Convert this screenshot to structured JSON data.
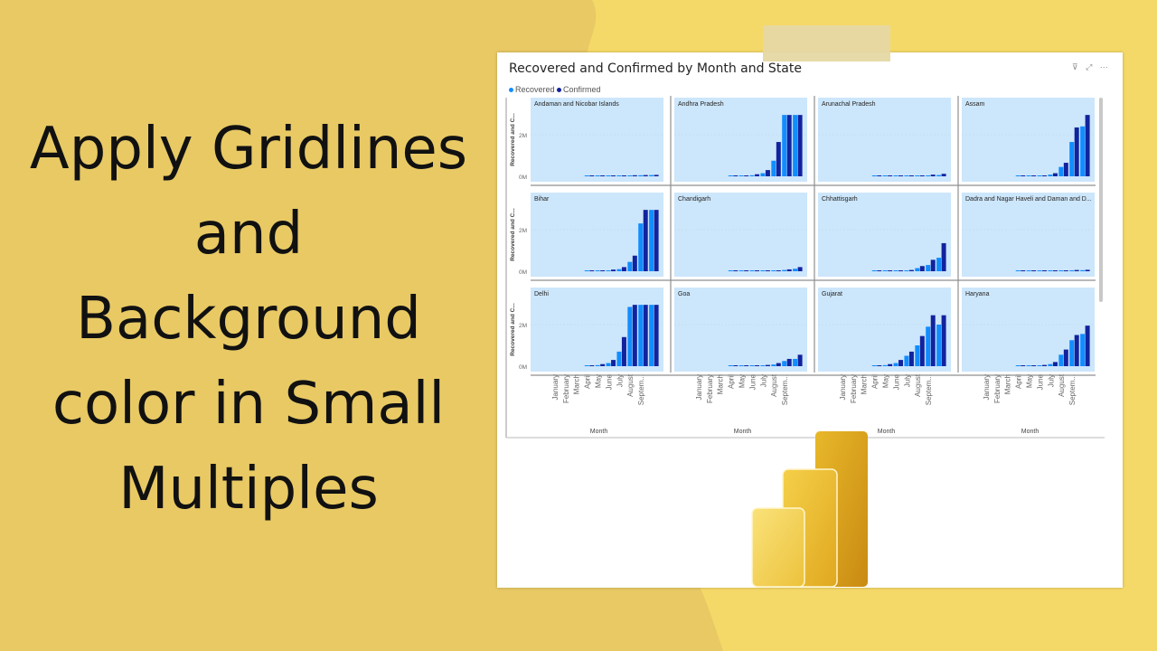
{
  "headline": {
    "lines": [
      "Apply Gridlines",
      "and",
      "Background",
      "color in Small",
      "Multiples"
    ]
  },
  "visual": {
    "title": "Recovered and Confirmed by Month and State",
    "header_icons": [
      "filter-icon",
      "focus-mode-icon",
      "more-options-icon"
    ],
    "header_icons_text": "⊽ ⤢ ⋯",
    "legend": [
      {
        "label": "Recovered",
        "color": "#118DFF"
      },
      {
        "label": "Confirmed",
        "color": "#12239E"
      }
    ]
  },
  "colors": {
    "panel_background": "#cce6fb",
    "recovered": "#118DFF",
    "confirmed": "#12239E",
    "page_background": "#e8c964",
    "accent_yellow": "#f5d968"
  },
  "chart_data": {
    "type": "bar",
    "subtype": "small-multiples-clustered-column",
    "grid": true,
    "x_tick_labels": [
      "January",
      "February",
      "March",
      "April",
      "May",
      "June",
      "July",
      "August",
      "Septem..."
    ],
    "xlabel": "Month",
    "ylabel": "Recovered and C...",
    "y_ticks": [
      "2M",
      "0M"
    ],
    "ylim": [
      0,
      3000000
    ],
    "months": [
      "March",
      "April",
      "May",
      "June",
      "July",
      "August",
      "September"
    ],
    "series_names": [
      "Recovered",
      "Confirmed"
    ],
    "multiples": [
      {
        "state": "Andaman and Nicobar Islands",
        "recovered": [
          0,
          2000,
          10000,
          25000,
          30000,
          50000,
          60000
        ],
        "confirmed": [
          2000,
          10000,
          25000,
          30000,
          50000,
          60000,
          70000
        ]
      },
      {
        "state": "Andhra Pradesh",
        "recovered": [
          5000,
          20000,
          50000,
          150000,
          750000,
          2950000,
          2950000
        ],
        "confirmed": [
          10000,
          40000,
          100000,
          300000,
          1650000,
          2950000,
          2950000
        ]
      },
      {
        "state": "Arunachal Pradesh",
        "recovered": [
          0,
          2000,
          5000,
          10000,
          20000,
          40000,
          60000
        ],
        "confirmed": [
          1000,
          5000,
          10000,
          20000,
          40000,
          80000,
          120000
        ]
      },
      {
        "state": "Assam",
        "recovered": [
          2000,
          5000,
          20000,
          80000,
          450000,
          1650000,
          2400000
        ],
        "confirmed": [
          5000,
          10000,
          40000,
          150000,
          650000,
          2350000,
          2950000
        ]
      },
      {
        "state": "Bihar",
        "recovered": [
          5000,
          10000,
          40000,
          100000,
          450000,
          2300000,
          2950000
        ],
        "confirmed": [
          10000,
          20000,
          80000,
          200000,
          750000,
          2950000,
          2950000
        ]
      },
      {
        "state": "Chandigarh",
        "recovered": [
          0,
          2000,
          5000,
          10000,
          20000,
          60000,
          120000
        ],
        "confirmed": [
          2000,
          5000,
          10000,
          20000,
          40000,
          90000,
          200000
        ]
      },
      {
        "state": "Chhattisgarh",
        "recovered": [
          0,
          2000,
          10000,
          30000,
          150000,
          300000,
          650000
        ],
        "confirmed": [
          2000,
          5000,
          20000,
          60000,
          250000,
          550000,
          1350000
        ]
      },
      {
        "state": "Dadra and Nagar Haveli and Daman and D...",
        "recovered": [
          0,
          1000,
          2000,
          5000,
          20000,
          40000,
          50000
        ],
        "confirmed": [
          1000,
          2000,
          5000,
          10000,
          30000,
          60000,
          70000
        ]
      },
      {
        "state": "Delhi",
        "recovered": [
          20000,
          50000,
          150000,
          700000,
          2850000,
          2950000,
          2950000
        ],
        "confirmed": [
          40000,
          100000,
          300000,
          1400000,
          2950000,
          2950000,
          2950000
        ]
      },
      {
        "state": "Goa",
        "recovered": [
          0,
          2000,
          10000,
          30000,
          80000,
          250000,
          350000
        ],
        "confirmed": [
          2000,
          5000,
          20000,
          60000,
          150000,
          350000,
          550000
        ]
      },
      {
        "state": "Gujarat",
        "recovered": [
          10000,
          50000,
          150000,
          500000,
          1000000,
          1900000,
          2000000
        ],
        "confirmed": [
          20000,
          100000,
          300000,
          700000,
          1450000,
          2450000,
          2450000
        ]
      },
      {
        "state": "Haryana",
        "recovered": [
          5000,
          10000,
          30000,
          100000,
          550000,
          1250000,
          1550000
        ],
        "confirmed": [
          10000,
          20000,
          60000,
          200000,
          800000,
          1500000,
          1950000
        ]
      }
    ]
  }
}
